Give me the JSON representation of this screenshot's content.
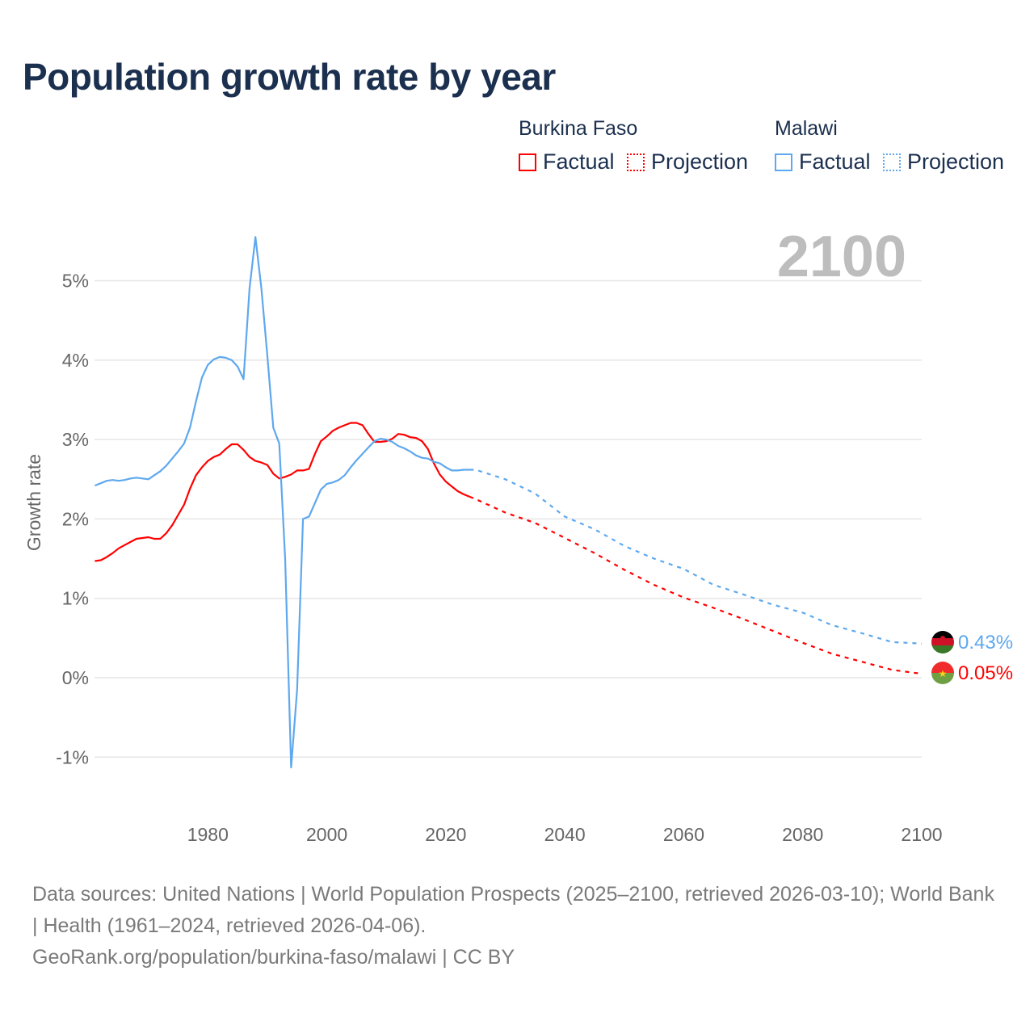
{
  "title": "Population growth rate by year",
  "legend": {
    "groups": [
      {
        "country": "Burkina Faso",
        "factual": "Factual",
        "projection": "Projection",
        "color": "#ff0000"
      },
      {
        "country": "Malawi",
        "factual": "Factual",
        "projection": "Projection",
        "color": "#5ea8ee"
      }
    ]
  },
  "year_label": "2100",
  "end_labels": {
    "malawi": "0.43%",
    "burkina": "0.05%"
  },
  "footer": {
    "sources": "Data sources: United Nations | World Population Prospects (2025–2100, retrieved 2026-03-10); World Bank | Health (1961–2024, retrieved 2026-04-06).",
    "link": "GeoRank.org/population/burkina-faso/malawi | CC BY"
  },
  "chart_data": {
    "type": "line",
    "title": "Population growth rate by year",
    "xlabel": "",
    "ylabel": "Growth rate",
    "xlim": [
      1961,
      2100
    ],
    "ylim": [
      -1.5,
      5.8
    ],
    "x_ticks": [
      1980,
      2000,
      2020,
      2040,
      2060,
      2080,
      2100
    ],
    "x_tick_labels": [
      "1980",
      "2000",
      "2020",
      "2040",
      "2060",
      "2080",
      "2100"
    ],
    "y_ticks": [
      -1,
      0,
      1,
      2,
      3,
      4,
      5
    ],
    "y_tick_labels": [
      "-1%",
      "0%",
      "1%",
      "2%",
      "3%",
      "4%",
      "5%"
    ],
    "grid": true,
    "legend_position": "top-right",
    "series": [
      {
        "name": "Burkina Faso Factual",
        "color": "#ff0000",
        "style": "solid",
        "x_start": 1961,
        "values": [
          1.47,
          1.48,
          1.52,
          1.57,
          1.63,
          1.67,
          1.71,
          1.75,
          1.76,
          1.77,
          1.75,
          1.75,
          1.82,
          1.92,
          2.05,
          2.18,
          2.38,
          2.55,
          2.65,
          2.73,
          2.78,
          2.81,
          2.88,
          2.94,
          2.94,
          2.87,
          2.78,
          2.73,
          2.71,
          2.68,
          2.57,
          2.51,
          2.53,
          2.56,
          2.61,
          2.61,
          2.63,
          2.82,
          2.98,
          3.04,
          3.11,
          3.15,
          3.18,
          3.21,
          3.21,
          3.18,
          3.07,
          2.97,
          2.97,
          2.98,
          3.01,
          3.07,
          3.06,
          3.03,
          3.02,
          2.98,
          2.88,
          2.7,
          2.56,
          2.47,
          2.41,
          2.35,
          2.31,
          2.28
        ]
      },
      {
        "name": "Burkina Faso Projection",
        "color": "#ff0000",
        "style": "dotted",
        "x": [
          2024,
          2025,
          2030,
          2035,
          2040,
          2045,
          2050,
          2055,
          2060,
          2065,
          2070,
          2075,
          2080,
          2085,
          2090,
          2095,
          2100
        ],
        "values": [
          2.28,
          2.25,
          2.08,
          1.95,
          1.76,
          1.57,
          1.36,
          1.17,
          1.01,
          0.88,
          0.74,
          0.59,
          0.44,
          0.3,
          0.2,
          0.1,
          0.05
        ]
      },
      {
        "name": "Malawi Factual",
        "color": "#5ea8ee",
        "style": "solid",
        "x_start": 1961,
        "values": [
          2.42,
          2.45,
          2.48,
          2.49,
          2.48,
          2.49,
          2.51,
          2.52,
          2.51,
          2.5,
          2.55,
          2.6,
          2.67,
          2.76,
          2.85,
          2.95,
          3.15,
          3.48,
          3.78,
          3.94,
          4.01,
          4.04,
          4.03,
          4.0,
          3.92,
          3.76,
          4.9,
          5.55,
          4.9,
          4.05,
          3.15,
          2.95,
          1.5,
          -1.13,
          -0.15,
          2.0,
          2.03,
          2.2,
          2.37,
          2.44,
          2.46,
          2.49,
          2.55,
          2.65,
          2.74,
          2.82,
          2.9,
          2.98,
          3.01,
          3.0,
          2.97,
          2.92,
          2.89,
          2.85,
          2.8,
          2.77,
          2.76,
          2.72,
          2.7,
          2.65,
          2.61,
          2.61,
          2.62,
          2.62
        ]
      },
      {
        "name": "Malawi Projection",
        "color": "#5ea8ee",
        "style": "dotted",
        "x": [
          2024,
          2025,
          2030,
          2035,
          2040,
          2045,
          2050,
          2055,
          2060,
          2065,
          2070,
          2075,
          2080,
          2085,
          2090,
          2095,
          2100
        ],
        "values": [
          2.62,
          2.62,
          2.5,
          2.32,
          2.03,
          1.87,
          1.66,
          1.5,
          1.37,
          1.17,
          1.05,
          0.92,
          0.82,
          0.66,
          0.56,
          0.45,
          0.43
        ]
      }
    ]
  }
}
